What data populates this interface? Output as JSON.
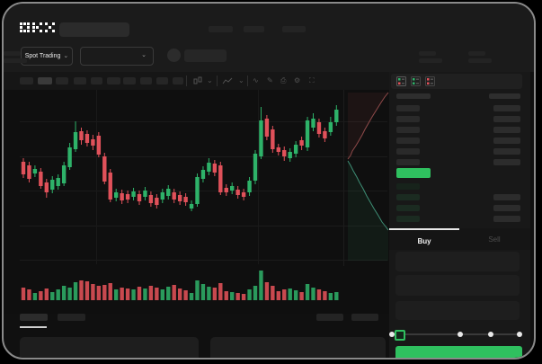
{
  "brand": {
    "name": "OKX"
  },
  "market_selector": {
    "label": "Spot Trading"
  },
  "icons": {
    "chevron": "⌄",
    "wave": "∿",
    "draw": "✎",
    "camera": "⎙",
    "settings": "⚙",
    "fullscreen": "⛶"
  },
  "order_panel": {
    "tabs": {
      "buy": "Buy",
      "sell": "Sell"
    },
    "slider": {
      "stops": 5,
      "selected_stop": 1
    },
    "buy_button_label": ""
  },
  "orderbook": {
    "view_modes": [
      "book-combined",
      "book-bids",
      "book-asks"
    ],
    "ask_rows": 6,
    "bid_rows": 3,
    "has_last_price_highlight": true
  },
  "colors": {
    "green": "#2eb269",
    "red": "#e0515a",
    "green_muted": "#2a9a5c",
    "red_muted": "#c8494f",
    "button_green": "#2fc05f",
    "ask_line": "#8f4a4a",
    "ask_fill": "rgba(200,90,90,0.08)",
    "bid_line": "#3e8e75",
    "bid_fill": "rgba(50,160,105,0.09)"
  },
  "chart_data": {
    "type": "candlestick",
    "title": "",
    "axis_labels": "none-visible",
    "units": "pixels from chart top-left; candle = [direction, wickTop, bodyTop, bodyBottom, wickBottom]",
    "candles": [
      [
        "r",
        72,
        76,
        90,
        94
      ],
      [
        "r",
        76,
        80,
        95,
        99
      ],
      [
        "g",
        80,
        84,
        89,
        93
      ],
      [
        "r",
        83,
        87,
        103,
        106
      ],
      [
        "r",
        95,
        99,
        110,
        116
      ],
      [
        "g",
        92,
        96,
        107,
        111
      ],
      [
        "g",
        90,
        94,
        103,
        107
      ],
      [
        "g",
        76,
        80,
        100,
        103
      ],
      [
        "g",
        55,
        60,
        82,
        85
      ],
      [
        "g",
        31,
        43,
        62,
        65
      ],
      [
        "r",
        38,
        42,
        52,
        57
      ],
      [
        "r",
        41,
        45,
        55,
        59
      ],
      [
        "r",
        46,
        51,
        58,
        63
      ],
      [
        "r",
        43,
        47,
        68,
        71
      ],
      [
        "r",
        66,
        70,
        98,
        101
      ],
      [
        "r",
        84,
        88,
        118,
        121
      ],
      [
        "g",
        106,
        110,
        116,
        120
      ],
      [
        "r",
        107,
        111,
        119,
        123
      ],
      [
        "r",
        108,
        112,
        118,
        122
      ],
      [
        "g",
        105,
        109,
        115,
        119
      ],
      [
        "r",
        108,
        112,
        120,
        124
      ],
      [
        "g",
        104,
        108,
        115,
        119
      ],
      [
        "r",
        109,
        113,
        122,
        126
      ],
      [
        "r",
        112,
        116,
        124,
        128
      ],
      [
        "g",
        106,
        110,
        118,
        122
      ],
      [
        "g",
        102,
        106,
        114,
        118
      ],
      [
        "r",
        106,
        110,
        118,
        122
      ],
      [
        "r",
        109,
        113,
        120,
        124
      ],
      [
        "r",
        111,
        115,
        121,
        125
      ],
      [
        "g",
        119,
        123,
        128,
        131
      ],
      [
        "g",
        89,
        93,
        123,
        126
      ],
      [
        "g",
        81,
        85,
        95,
        99
      ],
      [
        "g",
        72,
        77,
        87,
        91
      ],
      [
        "r",
        74,
        78,
        88,
        92
      ],
      [
        "r",
        76,
        80,
        110,
        113
      ],
      [
        "r",
        101,
        105,
        110,
        114
      ],
      [
        "g",
        99,
        103,
        108,
        112
      ],
      [
        "r",
        103,
        107,
        113,
        117
      ],
      [
        "r",
        106,
        110,
        115,
        119
      ],
      [
        "g",
        93,
        97,
        110,
        114
      ],
      [
        "g",
        63,
        67,
        97,
        101
      ],
      [
        "g",
        15,
        30,
        70,
        73
      ],
      [
        "r",
        24,
        28,
        48,
        52
      ],
      [
        "r",
        36,
        40,
        62,
        66
      ],
      [
        "r",
        56,
        60,
        65,
        69
      ],
      [
        "r",
        59,
        63,
        70,
        75
      ],
      [
        "g",
        61,
        65,
        72,
        76
      ],
      [
        "g",
        53,
        57,
        67,
        71
      ],
      [
        "r",
        48,
        52,
        58,
        63
      ],
      [
        "g",
        26,
        30,
        60,
        64
      ],
      [
        "g",
        22,
        28,
        38,
        42
      ],
      [
        "r",
        28,
        32,
        45,
        49
      ],
      [
        "r",
        38,
        42,
        50,
        54
      ],
      [
        "g",
        26,
        32,
        43,
        47
      ],
      [
        "g",
        13,
        18,
        32,
        36
      ]
    ],
    "volume": [
      14,
      12,
      8,
      10,
      13,
      9,
      12,
      16,
      14,
      20,
      22,
      21,
      18,
      16,
      17,
      19,
      12,
      14,
      13,
      12,
      15,
      13,
      16,
      14,
      12,
      15,
      17,
      13,
      11,
      8,
      22,
      18,
      15,
      14,
      19,
      10,
      9,
      8,
      7,
      12,
      16,
      33,
      20,
      16,
      10,
      12,
      13,
      11,
      9,
      18,
      14,
      12,
      10,
      8,
      9
    ],
    "depth": {
      "ask_line": [
        [
          4,
          77
        ],
        [
          7,
          73
        ],
        [
          9,
          68
        ],
        [
          13,
          62
        ],
        [
          16,
          57
        ],
        [
          20,
          50
        ],
        [
          23,
          44
        ],
        [
          27,
          37
        ],
        [
          31,
          30
        ],
        [
          36,
          22
        ],
        [
          41,
          14
        ],
        [
          45,
          8
        ],
        [
          49,
          3
        ]
      ],
      "bid_line": [
        [
          4,
          79
        ],
        [
          7,
          84
        ],
        [
          10,
          90
        ],
        [
          14,
          97
        ],
        [
          17,
          103
        ],
        [
          21,
          110
        ],
        [
          25,
          118
        ],
        [
          29,
          125
        ],
        [
          33,
          132
        ],
        [
          38,
          140
        ],
        [
          42,
          147
        ],
        [
          46,
          152
        ],
        [
          49,
          156
        ]
      ]
    }
  }
}
